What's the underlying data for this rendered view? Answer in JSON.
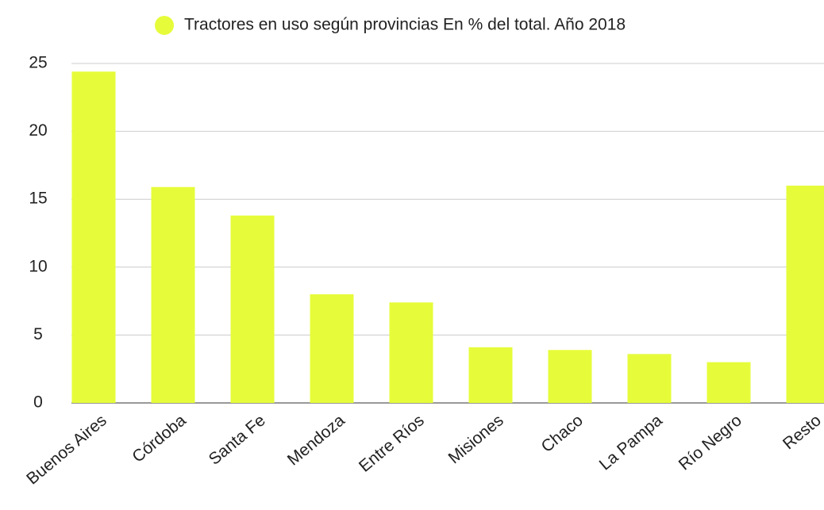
{
  "chart_data": {
    "type": "bar",
    "categories": [
      "Buenos Aires",
      "Córdoba",
      "Santa Fe",
      "Mendoza",
      "Entre Ríos",
      "Misiones",
      "Chaco",
      "La Pampa",
      "Río Negro",
      "Resto"
    ],
    "series": [
      {
        "name": "Tractores en uso según provincias En % del total. Año 2018",
        "color": "#e6fc3a",
        "values": [
          24.4,
          15.9,
          13.8,
          8.0,
          7.4,
          4.1,
          3.9,
          3.6,
          3.0,
          16.0
        ]
      }
    ],
    "ylim": [
      0,
      25
    ],
    "yticks": [
      0,
      5,
      10,
      15,
      20,
      25
    ],
    "grid": true,
    "legend": "top"
  }
}
